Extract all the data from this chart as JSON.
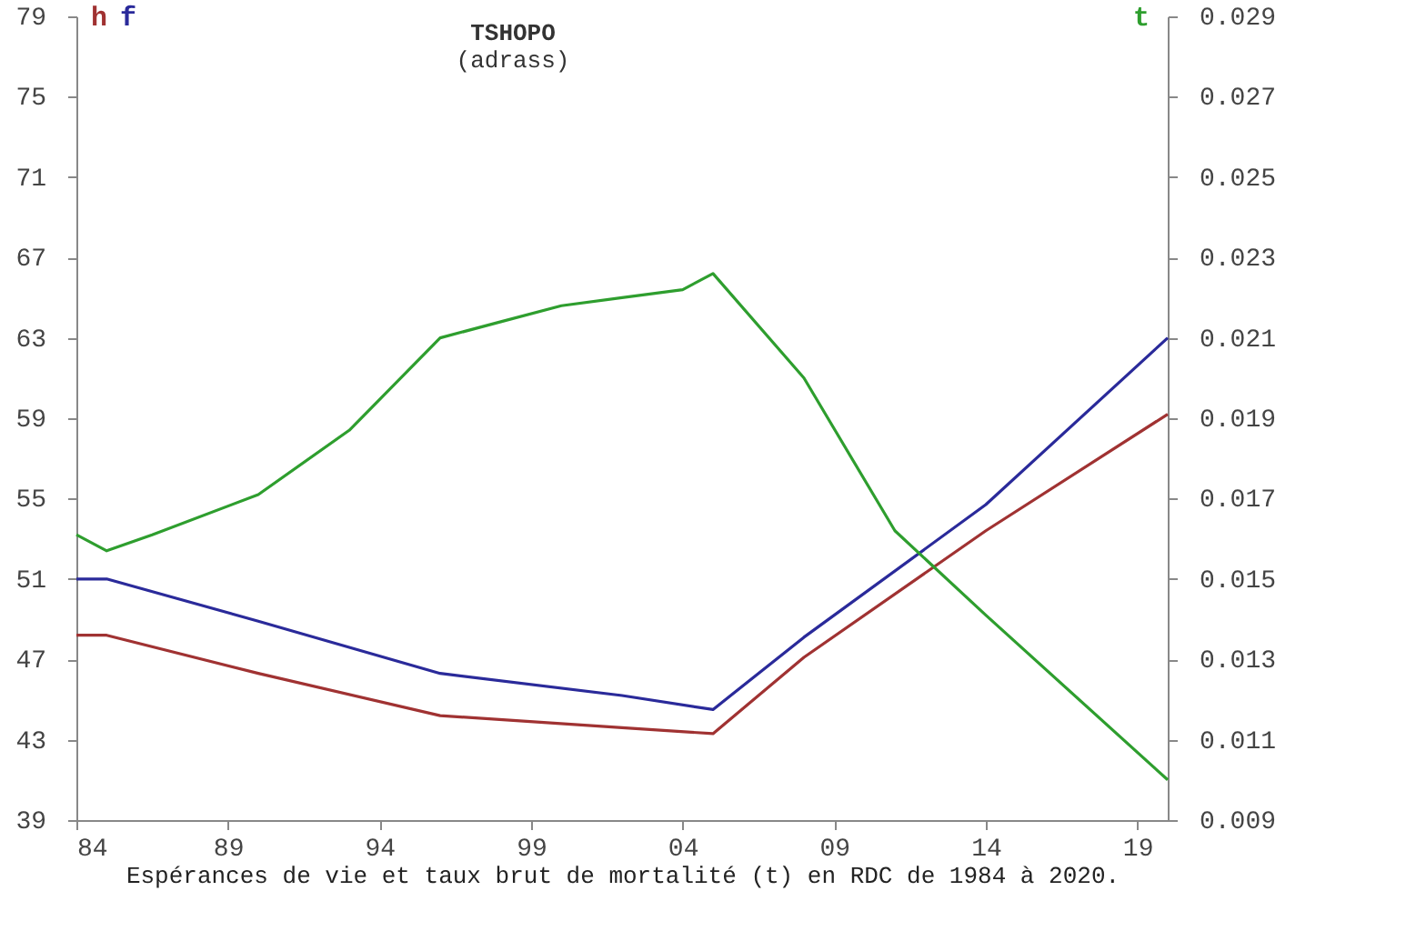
{
  "chart_data": {
    "type": "line",
    "title": "TSHOPO",
    "subtitle": "(adrass)",
    "xlabel": "Espérances de vie et taux brut de mortalité (t) en RDC de  1984 à 2020.",
    "xlim": [
      1984,
      2020
    ],
    "xticks": [
      {
        "value": 1984,
        "label": "84"
      },
      {
        "value": 1989,
        "label": "89"
      },
      {
        "value": 1994,
        "label": "94"
      },
      {
        "value": 1999,
        "label": "99"
      },
      {
        "value": 2004,
        "label": "04"
      },
      {
        "value": 2009,
        "label": "09"
      },
      {
        "value": 2014,
        "label": "14"
      },
      {
        "value": 2019,
        "label": "19"
      }
    ],
    "ylim": [
      39,
      79
    ],
    "yticks": [
      39,
      43,
      47,
      51,
      55,
      59,
      63,
      67,
      71,
      75,
      79
    ],
    "y2lim": [
      0.009,
      0.029
    ],
    "y2ticks": [
      0.009,
      0.011,
      0.013,
      0.015,
      0.017,
      0.019,
      0.021,
      0.023,
      0.025,
      0.027,
      0.029
    ],
    "series": [
      {
        "name": "h",
        "color": "#a03232",
        "x": [
          1984,
          1985,
          1990,
          1996,
          2002,
          2005,
          2008,
          2014,
          2020
        ],
        "values": [
          48.2,
          48.2,
          46.3,
          44.2,
          43.6,
          43.3,
          47.1,
          53.4,
          59.2
        ]
      },
      {
        "name": "f",
        "color": "#2a2a9a",
        "x": [
          1984,
          1985,
          1990,
          1996,
          2002,
          2005,
          2008,
          2014,
          2020
        ],
        "values": [
          51.0,
          51.0,
          48.9,
          46.3,
          45.2,
          44.5,
          48.1,
          54.7,
          63.0
        ]
      },
      {
        "name": "t",
        "color": "#2e9e2e",
        "axis": "y2",
        "x": [
          1984,
          1985,
          1986.5,
          1990,
          1993,
          1996,
          1998,
          2000,
          2002,
          2004,
          2005,
          2008,
          2011,
          2014,
          2020
        ],
        "values": [
          0.0161,
          0.0157,
          0.0161,
          0.0171,
          0.0187,
          0.021,
          0.0214,
          0.0218,
          0.022,
          0.0222,
          0.0226,
          0.02,
          0.0162,
          0.0141,
          0.01
        ]
      }
    ],
    "legend": "top",
    "grid": false,
    "marker": "none",
    "line_style": "solid"
  }
}
